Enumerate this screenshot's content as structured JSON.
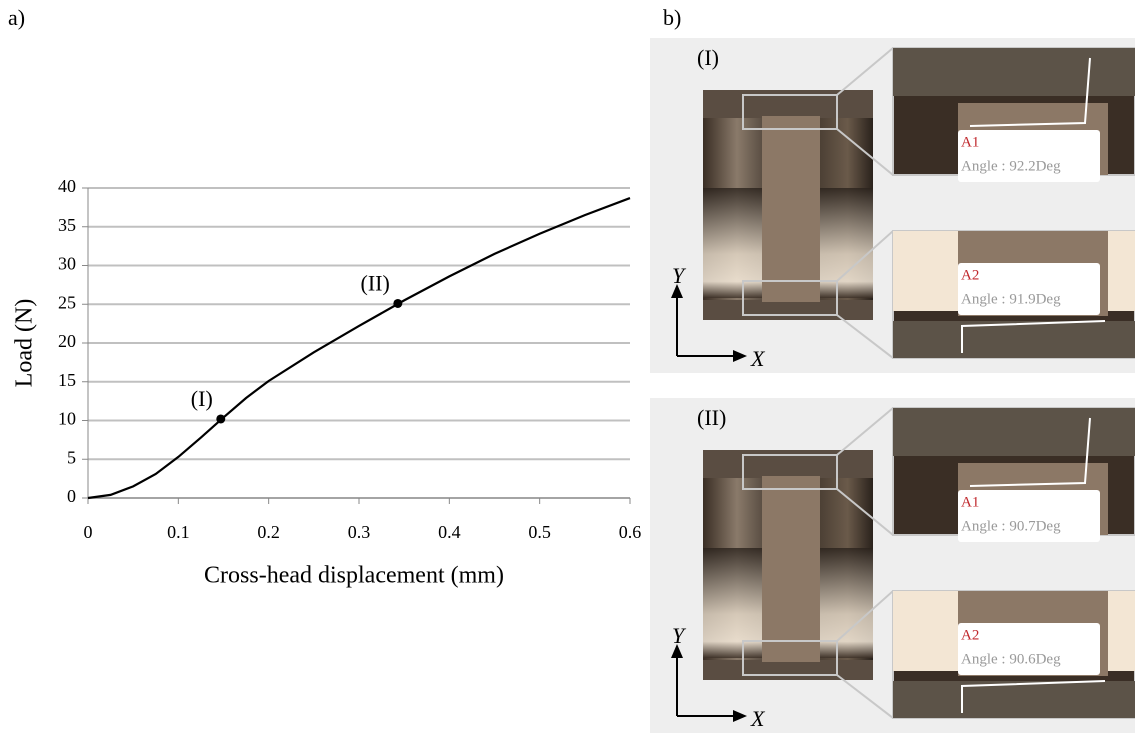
{
  "chart_data": {
    "type": "line",
    "x_label": "Cross-head displacement (mm)",
    "y_label": "Load (N)",
    "x": [
      0,
      0.025,
      0.05,
      0.075,
      0.1,
      0.125,
      0.15,
      0.175,
      0.2,
      0.25,
      0.3,
      0.35,
      0.4,
      0.45,
      0.5,
      0.55,
      0.6
    ],
    "series": [
      {
        "color": "#000000",
        "values": [
          0,
          0.4,
          1.5,
          3.1,
          5.3,
          7.8,
          10.4,
          12.9,
          15.1,
          18.8,
          22.2,
          25.5,
          28.6,
          31.5,
          34.1,
          36.5,
          38.7
        ]
      }
    ],
    "points": {
      "x": [
        0.147,
        0.343
      ],
      "y": [
        10.2,
        25.1
      ],
      "labels": [
        "(I)",
        "(II)"
      ]
    },
    "xlim": [
      0,
      0.6
    ],
    "ylim": [
      0,
      40
    ],
    "xticks": [
      0,
      0.1,
      0.2,
      0.3,
      0.4,
      0.5,
      0.6
    ],
    "yticks": [
      0,
      5,
      10,
      15,
      20,
      25,
      30,
      35,
      40
    ],
    "grid": true
  },
  "panel_labels": [
    "a)",
    "b)"
  ],
  "panel_b": {
    "axis_labels": [
      "Y",
      "X"
    ],
    "states": [
      {
        "label": "(I)",
        "zooms": [
          {
            "name": "A1",
            "angle": "Angle : 92.2Deg"
          },
          {
            "name": "A2",
            "angle": "Angle : 91.9Deg"
          }
        ]
      },
      {
        "label": "(II)",
        "zooms": [
          {
            "name": "A1",
            "angle": "Angle : 90.7Deg"
          },
          {
            "name": "A2",
            "angle": "Angle : 90.6Deg"
          }
        ]
      }
    ]
  }
}
